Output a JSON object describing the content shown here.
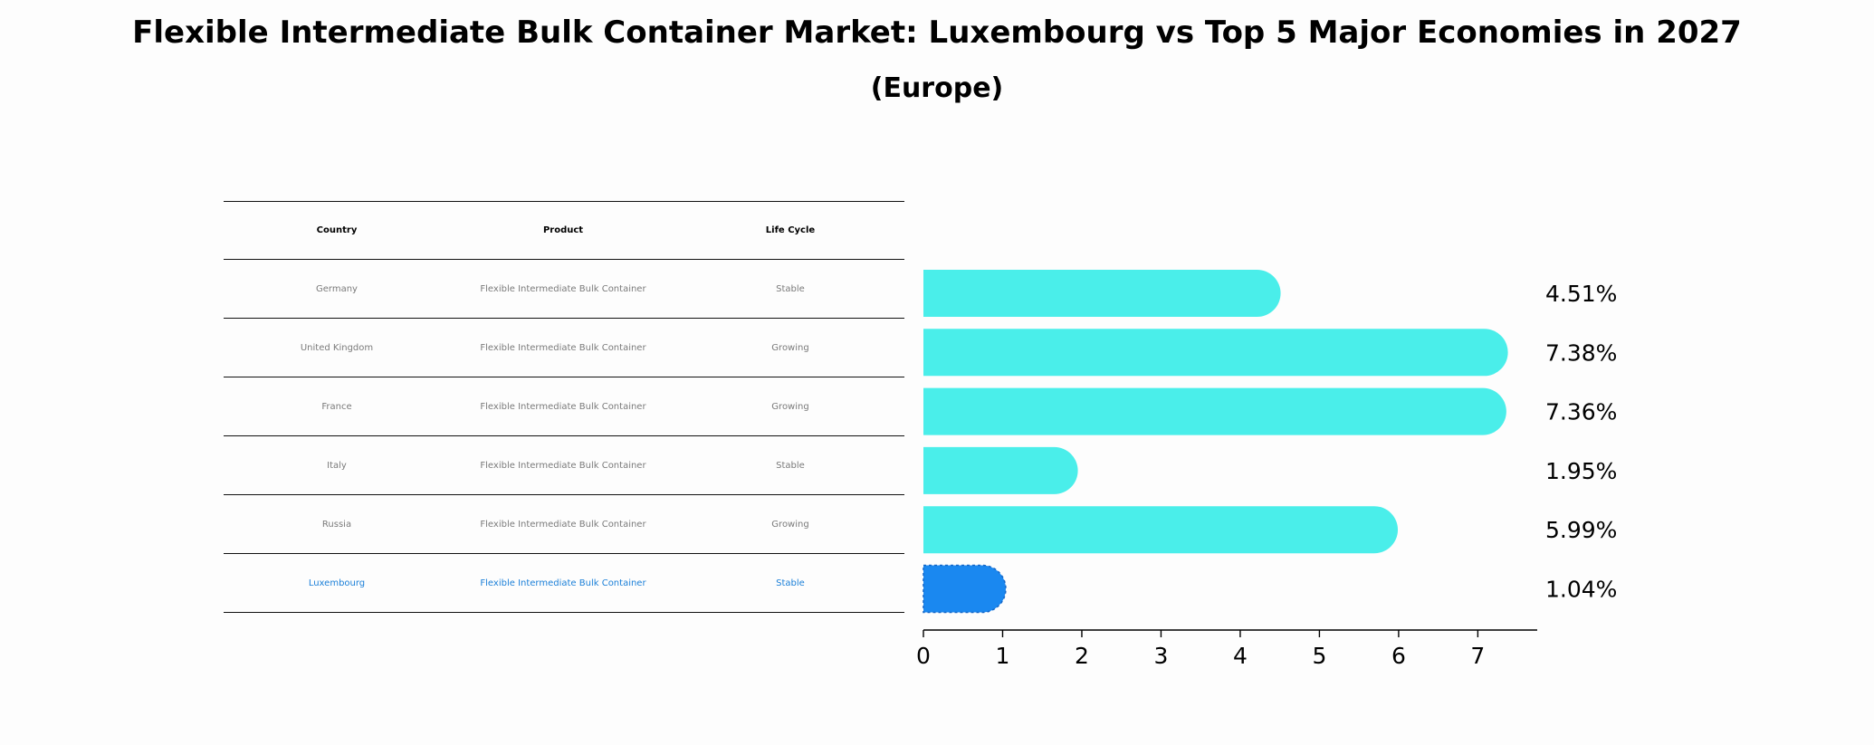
{
  "chart_data": {
    "type": "bar",
    "orientation": "horizontal",
    "title": "Flexible Intermediate Bulk Container Market: Luxembourg vs Top 5 Major Economies in 2027",
    "subtitle": "(Europe)",
    "categories": [
      "Germany",
      "United Kingdom",
      "France",
      "Italy",
      "Russia",
      "Luxembourg"
    ],
    "values": [
      4.51,
      7.38,
      7.36,
      1.95,
      5.99,
      1.04
    ],
    "value_labels": [
      "4.51%",
      "7.38%",
      "7.36%",
      "1.95%",
      "5.99%",
      "1.04%"
    ],
    "highlight_category": "Luxembourg",
    "xlim": [
      0,
      7.75
    ],
    "xticks": [
      0,
      1,
      2,
      3,
      4,
      5,
      6,
      7
    ],
    "xlabel": "",
    "ylabel": "",
    "colors": {
      "bar": "#4aeeea",
      "highlight": "#1a88f0"
    }
  },
  "table": {
    "headers": [
      "Country",
      "Product",
      "Life Cycle"
    ],
    "rows": [
      [
        "Germany",
        "Flexible Intermediate Bulk Container",
        "Stable"
      ],
      [
        "United Kingdom",
        "Flexible Intermediate Bulk Container",
        "Growing"
      ],
      [
        "France",
        "Flexible Intermediate Bulk Container",
        "Growing"
      ],
      [
        "Italy",
        "Flexible Intermediate Bulk Container",
        "Stable"
      ],
      [
        "Russia",
        "Flexible Intermediate Bulk Container",
        "Growing"
      ],
      [
        "Luxembourg",
        "Flexible Intermediate Bulk Container",
        "Stable"
      ]
    ]
  }
}
